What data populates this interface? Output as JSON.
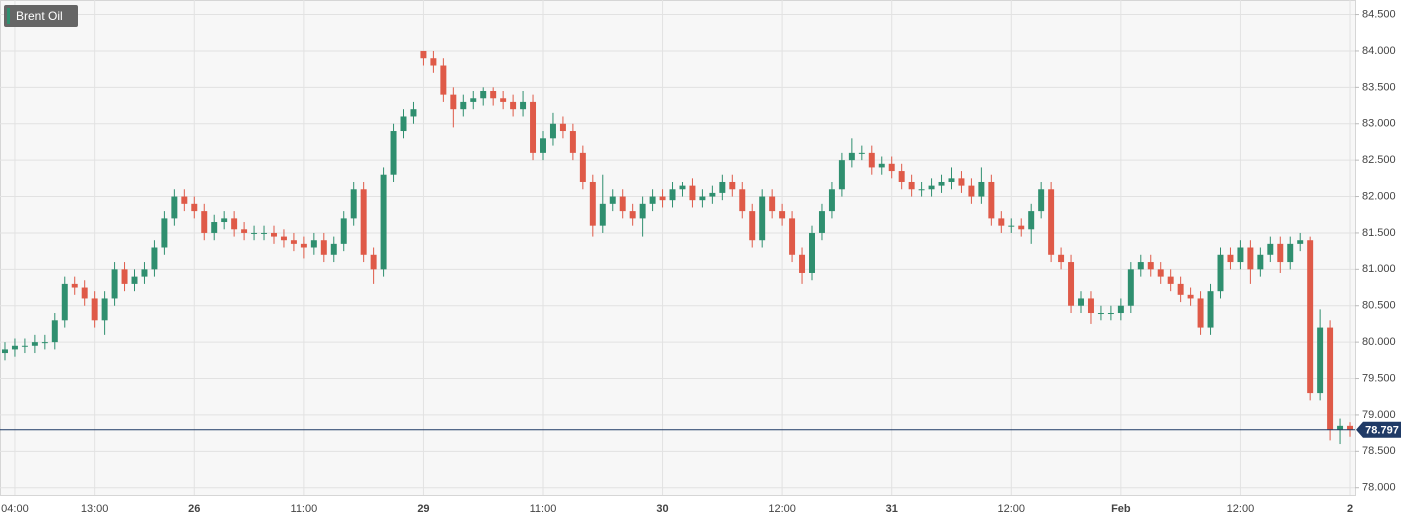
{
  "chart_data": {
    "type": "candlestick",
    "title": "Brent Oil",
    "categories": [
      null,
      "04:00",
      null,
      null,
      null,
      null,
      null,
      null,
      null,
      "13:00",
      null,
      null,
      null,
      null,
      null,
      null,
      null,
      null,
      null,
      "26",
      null,
      null,
      null,
      null,
      null,
      null,
      null,
      null,
      null,
      null,
      "11:00",
      null,
      null,
      null,
      null,
      null,
      null,
      null,
      null,
      null,
      null,
      null,
      "29",
      null,
      null,
      null,
      null,
      null,
      null,
      null,
      null,
      null,
      null,
      null,
      "11:00",
      null,
      null,
      null,
      null,
      null,
      null,
      null,
      null,
      null,
      null,
      null,
      "30",
      null,
      null,
      null,
      null,
      null,
      null,
      null,
      null,
      null,
      null,
      null,
      "12:00",
      null,
      null,
      null,
      null,
      null,
      null,
      null,
      null,
      null,
      null,
      "31",
      null,
      null,
      null,
      null,
      null,
      null,
      null,
      null,
      null,
      null,
      null,
      "12:00",
      null,
      null,
      null,
      null,
      null,
      null,
      null,
      null,
      null,
      null,
      "Feb",
      null,
      null,
      null,
      null,
      null,
      null,
      null,
      null,
      null,
      null,
      null,
      "12:00",
      null,
      null,
      null,
      null,
      null,
      null,
      null,
      null,
      null,
      null,
      "2"
    ],
    "open": [
      79.85,
      79.9,
      79.95,
      79.95,
      80.0,
      80.0,
      80.3,
      80.8,
      80.75,
      80.6,
      80.3,
      80.6,
      81.0,
      80.8,
      80.9,
      81.0,
      81.3,
      81.7,
      82.0,
      81.9,
      81.8,
      81.5,
      81.65,
      81.7,
      81.55,
      81.5,
      81.5,
      81.5,
      81.45,
      81.4,
      81.35,
      81.3,
      81.4,
      81.2,
      81.35,
      81.7,
      82.1,
      81.2,
      81.0,
      82.3,
      82.9,
      83.1,
      84.0,
      83.9,
      83.8,
      83.4,
      83.2,
      83.3,
      83.35,
      83.45,
      83.35,
      83.3,
      83.2,
      83.3,
      82.6,
      82.8,
      83.0,
      82.9,
      82.6,
      82.2,
      81.6,
      81.9,
      82.0,
      81.8,
      81.7,
      81.9,
      82.0,
      81.95,
      82.1,
      82.15,
      81.95,
      82.0,
      82.05,
      82.2,
      82.1,
      81.8,
      81.4,
      82.0,
      81.8,
      81.7,
      81.2,
      80.95,
      81.5,
      81.8,
      82.1,
      82.5,
      82.6,
      82.6,
      82.4,
      82.45,
      82.35,
      82.2,
      82.1,
      82.1,
      82.15,
      82.2,
      82.25,
      82.15,
      82.0,
      82.2,
      81.7,
      81.6,
      81.6,
      81.55,
      81.8,
      82.1,
      81.2,
      81.1,
      80.5,
      80.6,
      80.4,
      80.4,
      80.4,
      80.5,
      81.0,
      81.1,
      81.0,
      80.9,
      80.8,
      80.65,
      80.6,
      80.2,
      80.7,
      81.2,
      81.1,
      81.3,
      81.0,
      81.2,
      81.35,
      81.1,
      81.35,
      81.4,
      79.3,
      80.2,
      78.8,
      78.85
    ],
    "high": [
      80.0,
      80.05,
      80.05,
      80.1,
      80.1,
      80.4,
      80.9,
      80.9,
      80.85,
      80.7,
      80.7,
      81.1,
      81.1,
      81.0,
      81.1,
      81.4,
      81.8,
      82.1,
      82.1,
      82.0,
      81.9,
      81.75,
      81.8,
      81.8,
      81.65,
      81.6,
      81.6,
      81.6,
      81.55,
      81.5,
      81.45,
      81.5,
      81.5,
      81.45,
      81.8,
      82.2,
      82.2,
      81.3,
      82.4,
      83.0,
      83.2,
      83.3,
      84.0,
      84.0,
      83.9,
      83.5,
      83.4,
      83.45,
      83.5,
      83.5,
      83.45,
      83.4,
      83.45,
      83.4,
      82.9,
      83.15,
      83.1,
      83.0,
      82.7,
      82.3,
      82.3,
      82.1,
      82.1,
      81.9,
      82.0,
      82.1,
      82.1,
      82.2,
      82.2,
      82.25,
      82.1,
      82.15,
      82.3,
      82.3,
      82.2,
      81.9,
      82.1,
      82.1,
      81.9,
      81.8,
      81.3,
      81.6,
      81.9,
      82.2,
      82.6,
      82.8,
      82.7,
      82.7,
      82.55,
      82.55,
      82.45,
      82.3,
      82.2,
      82.25,
      82.3,
      82.4,
      82.35,
      82.25,
      82.4,
      82.3,
      81.8,
      81.7,
      81.7,
      81.9,
      82.2,
      82.2,
      81.3,
      81.2,
      80.7,
      80.7,
      80.5,
      80.5,
      80.6,
      81.1,
      81.2,
      81.2,
      81.1,
      81.0,
      80.9,
      80.75,
      80.7,
      80.8,
      81.3,
      81.3,
      81.4,
      81.4,
      81.3,
      81.45,
      81.45,
      81.45,
      81.5,
      81.45,
      80.45,
      80.3,
      78.95,
      78.9
    ],
    "low": [
      79.75,
      79.8,
      79.85,
      79.85,
      79.9,
      79.9,
      80.2,
      80.65,
      80.5,
      80.2,
      80.1,
      80.5,
      80.7,
      80.7,
      80.8,
      80.9,
      81.2,
      81.6,
      81.8,
      81.7,
      81.4,
      81.4,
      81.55,
      81.45,
      81.4,
      81.4,
      81.4,
      81.35,
      81.3,
      81.25,
      81.15,
      81.2,
      81.1,
      81.1,
      81.25,
      81.6,
      81.1,
      80.8,
      80.9,
      82.2,
      82.8,
      83.0,
      83.8,
      83.7,
      83.3,
      82.95,
      83.1,
      83.2,
      83.25,
      83.25,
      83.2,
      83.1,
      83.1,
      82.5,
      82.5,
      82.7,
      82.8,
      82.5,
      82.1,
      81.45,
      81.5,
      81.8,
      81.7,
      81.6,
      81.45,
      81.8,
      81.85,
      81.85,
      82.0,
      81.85,
      81.85,
      81.9,
      81.95,
      82.0,
      81.7,
      81.3,
      81.3,
      81.7,
      81.6,
      81.1,
      80.8,
      80.85,
      81.4,
      81.7,
      82.0,
      82.4,
      82.5,
      82.3,
      82.3,
      82.25,
      82.1,
      82.0,
      82.0,
      82.0,
      82.05,
      82.1,
      82.05,
      81.9,
      81.9,
      81.6,
      81.5,
      81.5,
      81.45,
      81.35,
      81.7,
      81.1,
      81.0,
      80.4,
      80.4,
      80.25,
      80.3,
      80.3,
      80.3,
      80.4,
      80.9,
      80.9,
      80.8,
      80.7,
      80.55,
      80.5,
      80.1,
      80.1,
      80.6,
      81.0,
      81.0,
      80.8,
      80.9,
      81.1,
      80.95,
      81.0,
      81.25,
      79.2,
      79.2,
      78.65,
      78.6,
      78.7
    ],
    "close": [
      79.9,
      79.95,
      79.95,
      80.0,
      80.0,
      80.3,
      80.8,
      80.75,
      80.6,
      80.3,
      80.6,
      81.0,
      80.8,
      80.9,
      81.0,
      81.3,
      81.7,
      82.0,
      81.9,
      81.8,
      81.5,
      81.65,
      81.7,
      81.55,
      81.5,
      81.5,
      81.5,
      81.45,
      81.4,
      81.35,
      81.3,
      81.4,
      81.2,
      81.35,
      81.7,
      82.1,
      81.2,
      81.0,
      82.3,
      82.9,
      83.1,
      83.2,
      83.9,
      83.8,
      83.4,
      83.2,
      83.3,
      83.35,
      83.45,
      83.35,
      83.3,
      83.2,
      83.3,
      82.6,
      82.8,
      83.0,
      82.9,
      82.6,
      82.2,
      81.6,
      81.9,
      82.0,
      81.8,
      81.7,
      81.9,
      82.0,
      81.95,
      82.1,
      82.15,
      81.95,
      82.0,
      82.05,
      82.2,
      82.1,
      81.8,
      81.4,
      82.0,
      81.8,
      81.7,
      81.2,
      80.95,
      81.5,
      81.8,
      82.1,
      82.5,
      82.6,
      82.6,
      82.4,
      82.45,
      82.35,
      82.2,
      82.1,
      82.1,
      82.15,
      82.2,
      82.25,
      82.15,
      82.0,
      82.2,
      81.7,
      81.6,
      81.6,
      81.55,
      81.8,
      82.1,
      81.2,
      81.1,
      80.5,
      80.6,
      80.4,
      80.4,
      80.4,
      80.5,
      81.0,
      81.1,
      81.0,
      80.9,
      80.8,
      80.65,
      80.6,
      80.2,
      80.7,
      81.2,
      81.1,
      81.3,
      81.0,
      81.2,
      81.35,
      81.1,
      81.35,
      81.4,
      79.3,
      80.2,
      78.8,
      78.85,
      78.797
    ],
    "up_color": "#2f8f6f",
    "down_color": "#df5a48",
    "last_price_color": "#1f3a66",
    "ylim": [
      77.9,
      84.7
    ],
    "yticks": [
      {
        "value": 78,
        "label": "78.000"
      },
      {
        "value": 78.5,
        "label": "78.500"
      },
      {
        "value": 79,
        "label": "79.000"
      },
      {
        "value": 79.5,
        "label": "79.500"
      },
      {
        "value": 80,
        "label": "80.000"
      },
      {
        "value": 80.5,
        "label": "80.500"
      },
      {
        "value": 81,
        "label": "81.000"
      },
      {
        "value": 81.5,
        "label": "81.500"
      },
      {
        "value": 82,
        "label": "82.000"
      },
      {
        "value": 82.5,
        "label": "82.500"
      },
      {
        "value": 83,
        "label": "83.000"
      },
      {
        "value": 83.5,
        "label": "83.500"
      },
      {
        "value": 84,
        "label": "84.000"
      },
      {
        "value": 84.5,
        "label": "84.500"
      }
    ],
    "grid": true
  }
}
